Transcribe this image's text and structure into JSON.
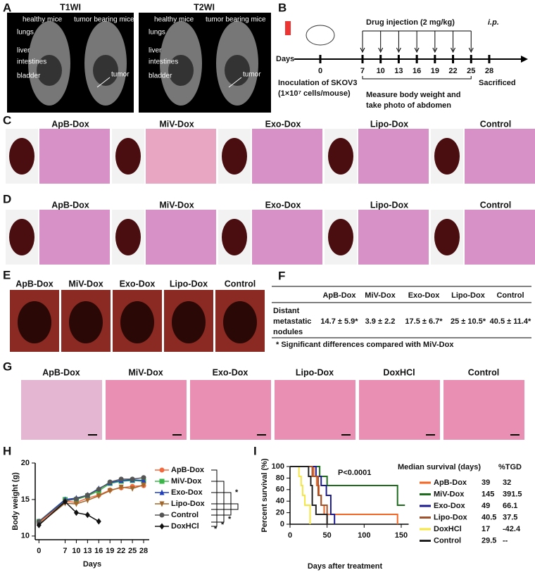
{
  "panel_a": {
    "label": "A",
    "t1_title": "T1WI",
    "t2_title": "T2WI",
    "healthy": "healthy mice",
    "tumor_bearing": "tumor bearing mice",
    "organs": [
      "lungs",
      "liver",
      "intestines",
      "bladder"
    ],
    "tumor": "tumor"
  },
  "panel_b": {
    "label": "B",
    "injection": "Drug  injection (2 mg/kg)",
    "route": "i.p.",
    "days_label": "Days",
    "days": [
      0,
      7,
      10,
      13,
      16,
      19,
      22,
      25,
      28
    ],
    "inoculation": [
      "Inoculation of  SKOV3",
      "(1×10⁷ cells/mouse)"
    ],
    "measure": [
      "Measure body weight and",
      "take photo of abdomen"
    ],
    "sacrificed": "Sacrificed"
  },
  "panel_c": {
    "label": "C",
    "titles": [
      "ApB-Dox",
      "MiV-Dox",
      "Exo-Dox",
      "Lipo-Dox",
      "Control"
    ]
  },
  "panel_d": {
    "label": "D",
    "titles": [
      "ApB-Dox",
      "MiV-Dox",
      "Exo-Dox",
      "Lipo-Dox",
      "Control"
    ]
  },
  "panel_e": {
    "label": "E",
    "titles": [
      "ApB-Dox",
      "MiV-Dox",
      "Exo-Dox",
      "Lipo-Dox",
      "Control"
    ]
  },
  "panel_f": {
    "label": "F",
    "header": [
      "ApB-Dox",
      "MiV-Dox",
      "Exo-Dox",
      "Lipo-Dox",
      "Control"
    ],
    "row_label": [
      "Distant",
      "metastatic",
      "nodules"
    ],
    "values": [
      "14.7 ± 5.9*",
      "3.9 ± 2.2",
      "17.5 ± 6.7*",
      "25 ± 10.5*",
      "40.5 ± 11.4*"
    ],
    "footnote": "* Significant differences compared with MiV-Dox"
  },
  "panel_g": {
    "label": "G",
    "titles": [
      "ApB-Dox",
      "MiV-Dox",
      "Exo-Dox",
      "Lipo-Dox",
      "DoxHCl",
      "Control"
    ]
  },
  "chart_data": [
    {
      "panel_label": "H",
      "type": "line",
      "x_label": "Days",
      "y_label": "Body weight (g)",
      "x": [
        0,
        7,
        10,
        13,
        16,
        19,
        22,
        25,
        28
      ],
      "xlim": [
        -1,
        29.5
      ],
      "xticks": [
        0,
        7,
        10,
        13,
        16,
        19,
        22,
        25,
        28
      ],
      "ylim": [
        9.5,
        20
      ],
      "yticks": [
        10,
        15,
        20
      ],
      "series": [
        {
          "name": "ApB-Dox",
          "color": "#f4683c",
          "marker": "circle",
          "values": [
            11.8,
            14.8,
            14.6,
            15.2,
            15.6,
            16.3,
            16.6,
            16.8,
            16.9
          ]
        },
        {
          "name": "MiV-Dox",
          "color": "#39b54a",
          "marker": "square",
          "values": [
            12,
            15,
            15,
            15.5,
            16.2,
            17.2,
            17.5,
            17.6,
            17.5
          ]
        },
        {
          "name": "Exo-Dox",
          "color": "#1f3fbf",
          "marker": "triangle-up",
          "values": [
            12,
            15,
            15.2,
            15.6,
            16.5,
            17.3,
            17.6,
            17.7,
            17.6
          ]
        },
        {
          "name": "Lipo-Dox",
          "color": "#a0662a",
          "marker": "triangle-down",
          "values": [
            11.6,
            14.5,
            14.4,
            14.9,
            15.5,
            16.2,
            16.7,
            16.5,
            17
          ]
        },
        {
          "name": "Control",
          "color": "#555555",
          "marker": "circle",
          "values": [
            12,
            14.8,
            15.1,
            15.6,
            16.4,
            17.4,
            17.8,
            17.8,
            18
          ]
        },
        {
          "name": "DoxHCl",
          "color": "#111111",
          "marker": "diamond",
          "values": [
            11.5,
            14.7,
            13.2,
            12.9,
            12,
            null,
            null,
            null,
            null
          ]
        }
      ],
      "annotations": [
        "*",
        "*",
        "*",
        "*"
      ]
    },
    {
      "panel_label": "I",
      "type": "step",
      "x_label": "Days after treatment",
      "y_label": "Percent survival (%)",
      "xlim": [
        0,
        160
      ],
      "xticks": [
        0,
        50,
        100,
        150
      ],
      "ylim": [
        0,
        100
      ],
      "yticks": [
        0,
        20,
        40,
        60,
        80,
        100
      ],
      "annotation": "P<0.0001",
      "table_header": [
        "Median survival (days)",
        "%TGD"
      ],
      "series": [
        {
          "name": "ApB-Dox",
          "color": "#f26522",
          "x": [
            0,
            32,
            36,
            39,
            42,
            46,
            145
          ],
          "values": [
            100,
            83,
            67,
            50,
            33,
            17,
            0
          ],
          "median": 39,
          "tgd": 32
        },
        {
          "name": "MiV-Dox",
          "color": "#1e6b1e",
          "x": [
            0,
            40,
            50,
            145,
            155
          ],
          "values": [
            100,
            83,
            67,
            33,
            33
          ],
          "median": 145,
          "tgd": 391.5
        },
        {
          "name": "Exo-Dox",
          "color": "#1b1b8f",
          "x": [
            0,
            35,
            42,
            49,
            55,
            60
          ],
          "values": [
            100,
            83,
            67,
            50,
            17,
            0
          ],
          "median": 49,
          "tgd": 66.1
        },
        {
          "name": "Lipo-Dox",
          "color": "#a0522d",
          "x": [
            0,
            30,
            38,
            42,
            50
          ],
          "values": [
            100,
            83,
            50,
            33,
            0
          ],
          "median": 40.5,
          "tgd": 37.5
        },
        {
          "name": "DoxHCl",
          "color": "#f5e642",
          "x": [
            0,
            12,
            15,
            17,
            20,
            27
          ],
          "values": [
            100,
            83,
            67,
            50,
            33,
            0
          ],
          "median": 17,
          "tgd": -42.4
        },
        {
          "name": "Control",
          "color": "#222222",
          "x": [
            0,
            25,
            28,
            30,
            35,
            50
          ],
          "values": [
            100,
            83,
            67,
            33,
            17,
            0
          ],
          "median": 29.5,
          "tgd": "--"
        }
      ]
    }
  ]
}
